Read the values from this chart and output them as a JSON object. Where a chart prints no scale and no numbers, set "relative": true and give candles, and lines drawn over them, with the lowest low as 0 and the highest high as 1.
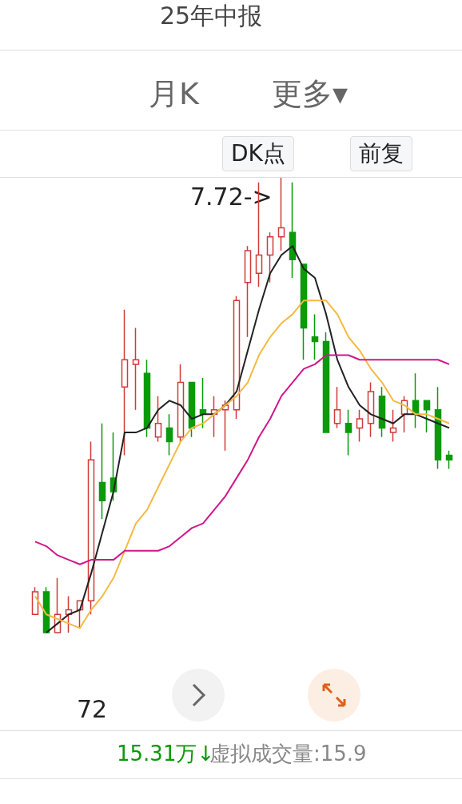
{
  "chart_data": {
    "type": "candlestick",
    "relative": true,
    "title": "25年中报",
    "categories": [
      null,
      null,
      null,
      null,
      null,
      null,
      null,
      null,
      null,
      null,
      null,
      null,
      null,
      null,
      null,
      null,
      null,
      null,
      null,
      null,
      null,
      null,
      null,
      null,
      null,
      null,
      null,
      null,
      null,
      null,
      null,
      null,
      null,
      null,
      null,
      null,
      null,
      null
    ],
    "ohlc": [
      [
        0.04,
        0.1,
        0.04,
        0.09
      ],
      [
        0.09,
        0.1,
        0.0,
        0.0
      ],
      [
        0.0,
        0.12,
        0.0,
        0.04
      ],
      [
        0.04,
        0.08,
        0.0,
        0.05
      ],
      [
        0.05,
        0.07,
        0.01,
        0.07
      ],
      [
        0.07,
        0.42,
        0.04,
        0.38
      ],
      [
        0.33,
        0.46,
        0.25,
        0.29
      ],
      [
        0.34,
        0.44,
        0.29,
        0.31
      ],
      [
        0.54,
        0.71,
        0.39,
        0.6
      ],
      [
        0.59,
        0.67,
        0.49,
        0.6
      ],
      [
        0.57,
        0.6,
        0.43,
        0.45
      ],
      [
        0.43,
        0.52,
        0.42,
        0.46
      ],
      [
        0.45,
        0.48,
        0.39,
        0.42
      ],
      [
        0.43,
        0.59,
        0.42,
        0.55
      ],
      [
        0.55,
        0.55,
        0.43,
        0.45
      ],
      [
        0.49,
        0.56,
        0.45,
        0.48
      ],
      [
        0.48,
        0.52,
        0.43,
        0.49
      ],
      [
        0.49,
        0.51,
        0.4,
        0.5
      ],
      [
        0.49,
        0.74,
        0.47,
        0.73
      ],
      [
        0.77,
        0.85,
        0.65,
        0.84
      ],
      [
        0.79,
        0.99,
        0.76,
        0.83
      ],
      [
        0.83,
        0.88,
        0.77,
        0.87
      ],
      [
        0.87,
        1.0,
        0.84,
        0.89
      ],
      [
        0.88,
        0.99,
        0.78,
        0.82
      ],
      [
        0.81,
        0.81,
        0.6,
        0.67
      ],
      [
        0.65,
        0.7,
        0.6,
        0.64
      ],
      [
        0.64,
        0.66,
        0.44,
        0.44
      ],
      [
        0.46,
        0.54,
        0.45,
        0.49
      ],
      [
        0.46,
        0.49,
        0.39,
        0.44
      ],
      [
        0.45,
        0.49,
        0.42,
        0.47
      ],
      [
        0.46,
        0.55,
        0.43,
        0.53
      ],
      [
        0.52,
        0.54,
        0.43,
        0.45
      ],
      [
        0.44,
        0.49,
        0.42,
        0.45
      ],
      [
        0.48,
        0.52,
        0.44,
        0.51
      ],
      [
        0.51,
        0.57,
        0.45,
        0.48
      ],
      [
        0.51,
        0.51,
        0.44,
        0.49
      ],
      [
        0.49,
        0.54,
        0.36,
        0.38
      ],
      [
        0.39,
        0.4,
        0.36,
        0.38
      ]
    ],
    "series": [
      {
        "type": "line",
        "color": "#222222",
        "values": [
          null,
          0,
          0.02,
          0.04,
          0.05,
          0.13,
          0.22,
          0.31,
          0.44,
          0.44,
          0.45,
          0.49,
          0.51,
          0.5,
          0.47,
          0.48,
          0.48,
          0.5,
          0.53,
          0.62,
          0.71,
          0.79,
          0.83,
          0.85,
          0.8,
          0.78,
          0.7,
          0.6,
          0.54,
          0.5,
          0.48,
          0.47,
          0.46,
          0.48,
          0.48,
          0.47,
          0.46,
          0.45
        ]
      },
      {
        "type": "line",
        "color": "#f5b942",
        "values": [
          0.08,
          0.04,
          0.03,
          0.02,
          0.01,
          0.05,
          0.08,
          0.12,
          0.18,
          0.24,
          0.27,
          0.32,
          0.37,
          0.42,
          0.45,
          0.46,
          0.48,
          0.5,
          0.52,
          0.55,
          0.61,
          0.65,
          0.68,
          0.7,
          0.73,
          0.73,
          0.73,
          0.7,
          0.65,
          0.62,
          0.58,
          0.55,
          0.51,
          0.5,
          0.48,
          0.48,
          0.47,
          0.46
        ]
      },
      {
        "type": "line",
        "color": "#d0168a",
        "values": [
          0.2,
          0.19,
          0.17,
          0.16,
          0.15,
          0.16,
          0.16,
          0.16,
          0.18,
          0.18,
          0.18,
          0.18,
          0.19,
          0.21,
          0.23,
          0.24,
          0.27,
          0.3,
          0.34,
          0.38,
          0.43,
          0.47,
          0.52,
          0.55,
          0.58,
          0.59,
          0.61,
          0.61,
          0.61,
          0.6,
          0.6,
          0.6,
          0.6,
          0.6,
          0.6,
          0.6,
          0.6,
          0.59
        ]
      }
    ],
    "marker": "none",
    "line_style": "solid",
    "annotations": [
      "月K",
      "更多▾",
      "DK点",
      "前复",
      "15.31万↓",
      "虚拟成交量:15.9",
      "7.72->",
      "72"
    ]
  }
}
